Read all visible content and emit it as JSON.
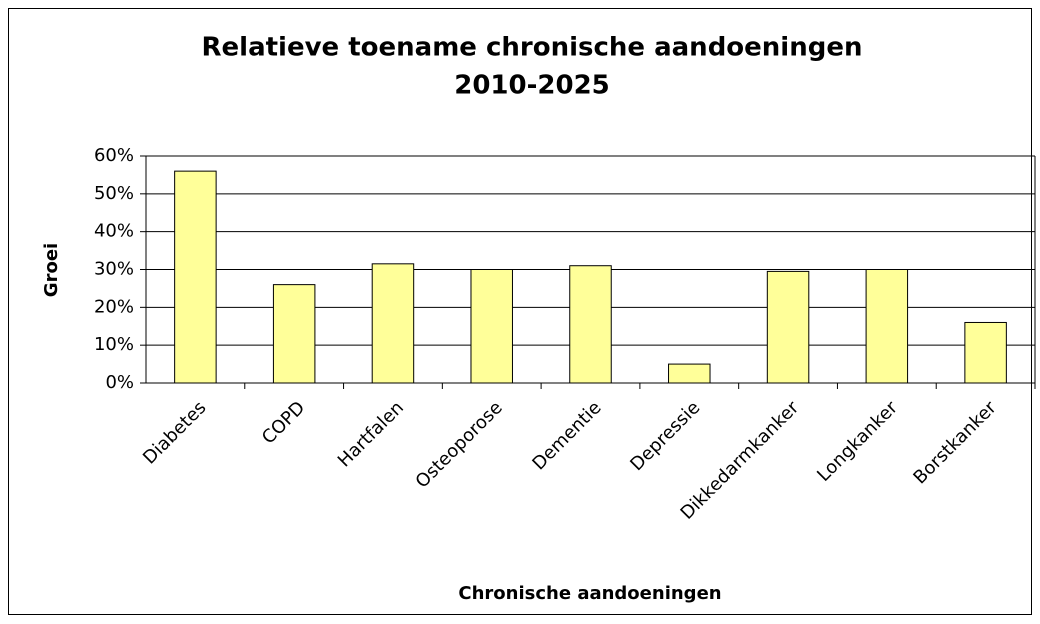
{
  "chart_data": {
    "type": "bar",
    "title": [
      "Relatieve toename chronische aandoeningen",
      "2010-2025"
    ],
    "x_label": "Chronische aandoeningen",
    "y_label": "Groei",
    "categories": [
      "Diabetes",
      "COPD",
      "Hartfalen",
      "Osteoporose",
      "Dementie",
      "Depressie",
      "Dikkedarmkanker",
      "Longkanker",
      "Borstkanker"
    ],
    "values": [
      56,
      26,
      31.5,
      30,
      31,
      5,
      29.5,
      30,
      16
    ],
    "color": "#ffff99",
    "ylim": [
      0,
      60
    ],
    "yticks": [
      {
        "value": 0,
        "label": "0%"
      },
      {
        "value": 10,
        "label": "10%"
      },
      {
        "value": 20,
        "label": "20%"
      },
      {
        "value": 30,
        "label": "30%"
      },
      {
        "value": 40,
        "label": "40%"
      },
      {
        "value": 50,
        "label": "50%"
      },
      {
        "value": 60,
        "label": "60%"
      }
    ],
    "grid": true
  }
}
